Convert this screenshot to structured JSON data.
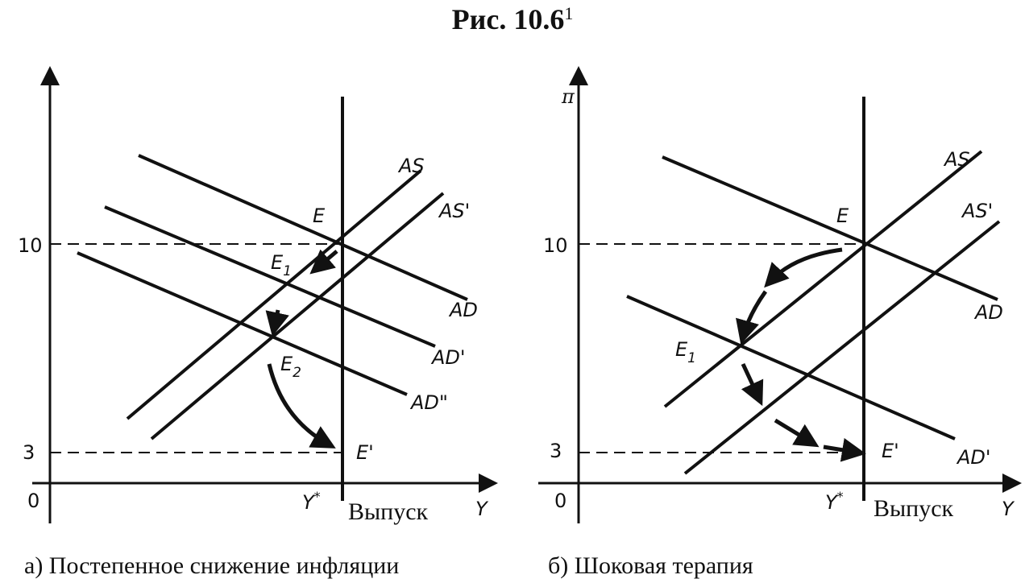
{
  "title": {
    "text": "Рис. 10.6",
    "sup": "1"
  },
  "panels": [
    {
      "ticks": [
        "10",
        "3",
        "0"
      ],
      "x_axis": "Y",
      "y_star": {
        "base": "Y",
        "sup": "*"
      },
      "output": "Выпуск",
      "curves": [
        "AS",
        "AS'",
        "AD",
        "AD'",
        "AD\""
      ],
      "points": [
        {
          "base": "E"
        },
        {
          "base": "E",
          "sub": "1"
        },
        {
          "base": "E",
          "sub": "2"
        },
        {
          "base": "E'"
        }
      ],
      "caption": "а) Постепенное снижение инфляции"
    },
    {
      "y_axis": "π",
      "ticks": [
        "10",
        "3",
        "0"
      ],
      "x_axis": "Y",
      "y_star": {
        "base": "Y",
        "sup": "*"
      },
      "output": "Выпуск",
      "curves": [
        "AS",
        "AS'",
        "AD",
        "AD'"
      ],
      "points": [
        {
          "base": "E"
        },
        {
          "base": "E",
          "sub": "1"
        },
        {
          "base": "E'"
        }
      ],
      "caption": "б) Шоковая терапия"
    }
  ]
}
